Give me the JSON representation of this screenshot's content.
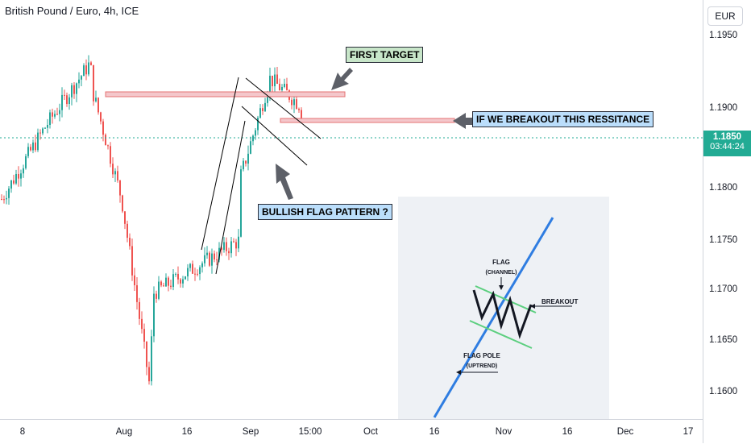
{
  "header": {
    "title": "British Pound / Euro, 4h, ICE"
  },
  "axis": {
    "currency": "EUR",
    "price_ticks": [
      "1.1950",
      "1.1900",
      "1.1850",
      "1.1800",
      "1.1750",
      "1.1700",
      "1.1650",
      "1.1600"
    ],
    "last_price": "1.1850",
    "countdown": "03:44:24",
    "time_ticks": [
      "8",
      "Aug",
      "16",
      "Sep",
      "15:00",
      "Oct",
      "16",
      "Nov",
      "16",
      "Dec",
      "17"
    ]
  },
  "annotations": {
    "first_target": "FIRST TARGET",
    "breakout": "IF WE BREAKOUT THIS RESSITANCE",
    "flag": "BULLISH FLAG PATTERN ?"
  },
  "inset": {
    "flag_label": "FLAG",
    "channel_label": "(CHANNEL)",
    "breakout_label": "BREAKOUT",
    "pole_label": "FLAG POLE",
    "uptrend_label": "(UPTREND)"
  },
  "colors": {
    "bull": "#26a69a",
    "bear": "#ef5350",
    "resistance": "#f4c7cb",
    "target_box": "#c8e6c9",
    "info_box": "#bbdefb",
    "inset_bg": "#eef1f5",
    "pole": "#2f7de1",
    "channel": "#5ccf7f"
  },
  "chart_data": {
    "type": "candlestick",
    "title": "British Pound / Euro, 4h, ICE",
    "ylim": [
      1.157,
      1.197
    ],
    "path_x": [
      "8",
      "Aug",
      "16",
      "Sep",
      "15:00"
    ],
    "approx_path": [
      {
        "x": "8",
        "y": 1.178
      },
      {
        "x": "8",
        "y": 1.185
      },
      {
        "x": "8",
        "y": 1.191
      },
      {
        "x": "Aug",
        "y": 1.188
      },
      {
        "x": "Aug",
        "y": 1.178
      },
      {
        "x": "Aug",
        "y": 1.16
      },
      {
        "x": "16",
        "y": 1.169
      },
      {
        "x": "16",
        "y": 1.174
      },
      {
        "x": "Sep",
        "y": 1.18
      },
      {
        "x": "Sep",
        "y": 1.1895
      },
      {
        "x": "Sep",
        "y": 1.187
      },
      {
        "x": "15:00",
        "y": 1.185
      }
    ],
    "last_price": 1.185
  }
}
